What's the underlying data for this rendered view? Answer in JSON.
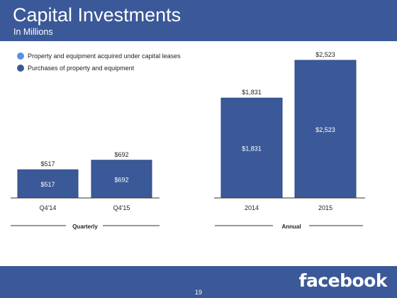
{
  "header": {
    "title": "Capital Investments",
    "subtitle": "In Millions"
  },
  "legend": [
    {
      "label": "Property and equipment  acquired under capital leases",
      "color": "#5b8ee6"
    },
    {
      "label": "Purchases of property and equipment",
      "color": "#3b5998"
    }
  ],
  "footer": {
    "page_number": "19",
    "brand": "facebook"
  },
  "colors": {
    "header": "#3b5998",
    "bar": "#3b5998",
    "bar_edge": "#2a4a85"
  },
  "chart_data": [
    {
      "type": "bar",
      "group_label": "Quarterly",
      "categories": [
        "Q4'14",
        "Q4'15"
      ],
      "series": [
        {
          "values": [
            517,
            692
          ],
          "labels": [
            "$517",
            "$692"
          ]
        }
      ],
      "totals": [
        517,
        692
      ],
      "total_labels": [
        "$517",
        "$692"
      ]
    },
    {
      "type": "bar",
      "group_label": "Annual",
      "categories": [
        "2014",
        "2015"
      ],
      "series": [
        {
          "values": [
            1831,
            2523
          ],
          "labels": [
            "$1,831",
            "$2,523"
          ]
        }
      ],
      "totals": [
        1831,
        2523
      ],
      "total_labels": [
        "$1,831",
        "$2,523"
      ]
    }
  ]
}
